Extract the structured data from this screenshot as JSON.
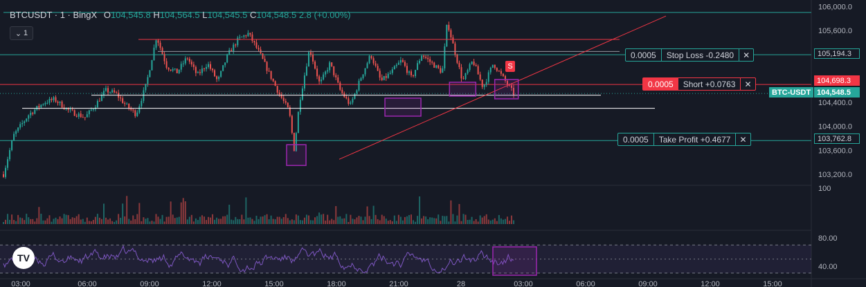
{
  "legend": {
    "symbol": "BTCUSDT · 1 · BingX",
    "open_key": "O",
    "open": "104,545.8",
    "high_key": "H",
    "high": "104,564.5",
    "low_key": "L",
    "low": "104,545.5",
    "close_key": "C",
    "close": "104,548.5",
    "change": "2.8 (+0.00%)",
    "toggle_label": "1"
  },
  "orders": {
    "stop_loss": {
      "qty": "0.0005",
      "label": "Stop Loss  -0.2480",
      "close": "✕"
    },
    "short": {
      "qty": "0.0005",
      "label": "Short +0.0763",
      "close": "✕"
    },
    "take_profit": {
      "qty": "0.0005",
      "label": "Take Profit  +0.4677",
      "close": "✕"
    }
  },
  "price_tags": {
    "stop_loss": "105,194.3",
    "short": "104,698.3",
    "last": "104,548.5",
    "take_profit": "103,762.8",
    "symbol": "BTC-USDT"
  },
  "signal_marker": "S",
  "logo_text": "TV",
  "chart_data": {
    "type": "candlestick",
    "symbol": "BTCUSDT",
    "timeframe": "1",
    "exchange": "BingX",
    "price_axis": {
      "ticks": [
        {
          "value": 106000,
          "label": "106,000.0"
        },
        {
          "value": 105600,
          "label": "105,600.0"
        },
        {
          "value": 104400,
          "label": "104,400.0"
        },
        {
          "value": 104000,
          "label": "104,000.0"
        },
        {
          "value": 103600,
          "label": "103,600.0"
        },
        {
          "value": 103200,
          "label": "103,200.0"
        }
      ],
      "range": [
        103050,
        106050
      ]
    },
    "price_path": [
      [
        0,
        103200
      ],
      [
        0.02,
        103850
      ],
      [
        0.05,
        104200
      ],
      [
        0.08,
        104400
      ],
      [
        0.1,
        104450
      ],
      [
        0.13,
        104250
      ],
      [
        0.16,
        104150
      ],
      [
        0.18,
        104350
      ],
      [
        0.2,
        104600
      ],
      [
        0.22,
        104550
      ],
      [
        0.24,
        104350
      ],
      [
        0.26,
        104200
      ],
      [
        0.28,
        104700
      ],
      [
        0.3,
        105500
      ],
      [
        0.32,
        105000
      ],
      [
        0.34,
        104900
      ],
      [
        0.36,
        105150
      ],
      [
        0.38,
        104850
      ],
      [
        0.4,
        105050
      ],
      [
        0.42,
        104750
      ],
      [
        0.44,
        105200
      ],
      [
        0.46,
        105450
      ],
      [
        0.48,
        105550
      ],
      [
        0.5,
        105250
      ],
      [
        0.52,
        104900
      ],
      [
        0.54,
        104550
      ],
      [
        0.56,
        104250
      ],
      [
        0.57,
        103600
      ],
      [
        0.58,
        104400
      ],
      [
        0.6,
        105300
      ],
      [
        0.62,
        104700
      ],
      [
        0.64,
        105050
      ],
      [
        0.66,
        104600
      ],
      [
        0.68,
        104350
      ],
      [
        0.7,
        104800
      ],
      [
        0.72,
        105200
      ],
      [
        0.74,
        104750
      ],
      [
        0.76,
        104900
      ],
      [
        0.78,
        105100
      ],
      [
        0.8,
        104800
      ],
      [
        0.82,
        105200
      ],
      [
        0.84,
        105050
      ],
      [
        0.86,
        104900
      ],
      [
        0.87,
        105750
      ],
      [
        0.88,
        105400
      ],
      [
        0.9,
        104750
      ],
      [
        0.92,
        105100
      ],
      [
        0.94,
        104650
      ],
      [
        0.96,
        105050
      ],
      [
        0.98,
        104800
      ],
      [
        1.0,
        104548
      ]
    ],
    "horizontal_levels": [
      {
        "name": "stop_loss",
        "value": 105194.3,
        "color": "#26a69a"
      },
      {
        "name": "short_entry",
        "value": 104698.3,
        "color": "#f23645"
      },
      {
        "name": "take_profit",
        "value": 103762.8,
        "color": "#26a69a"
      }
    ],
    "volume_axis": {
      "ticks": [
        {
          "value": 100,
          "label": "100"
        }
      ]
    },
    "rsi_axis": {
      "ticks": [
        {
          "value": 80,
          "label": "80.00"
        },
        {
          "value": 40,
          "label": "40.00"
        }
      ],
      "range": [
        25,
        88
      ],
      "band": [
        30,
        70
      ]
    },
    "time_axis": {
      "labels": [
        "03:00",
        "06:00",
        "09:00",
        "12:00",
        "15:00",
        "18:00",
        "21:00",
        "28",
        "03:00",
        "06:00",
        "09:00",
        "12:00",
        "15:00"
      ]
    },
    "colors": {
      "up": "#26a69a",
      "down": "#ef5350",
      "rsi": "#7e57c2",
      "trendline": "#f23645",
      "highlight": "#9c27b0",
      "background": "#161a25"
    }
  }
}
